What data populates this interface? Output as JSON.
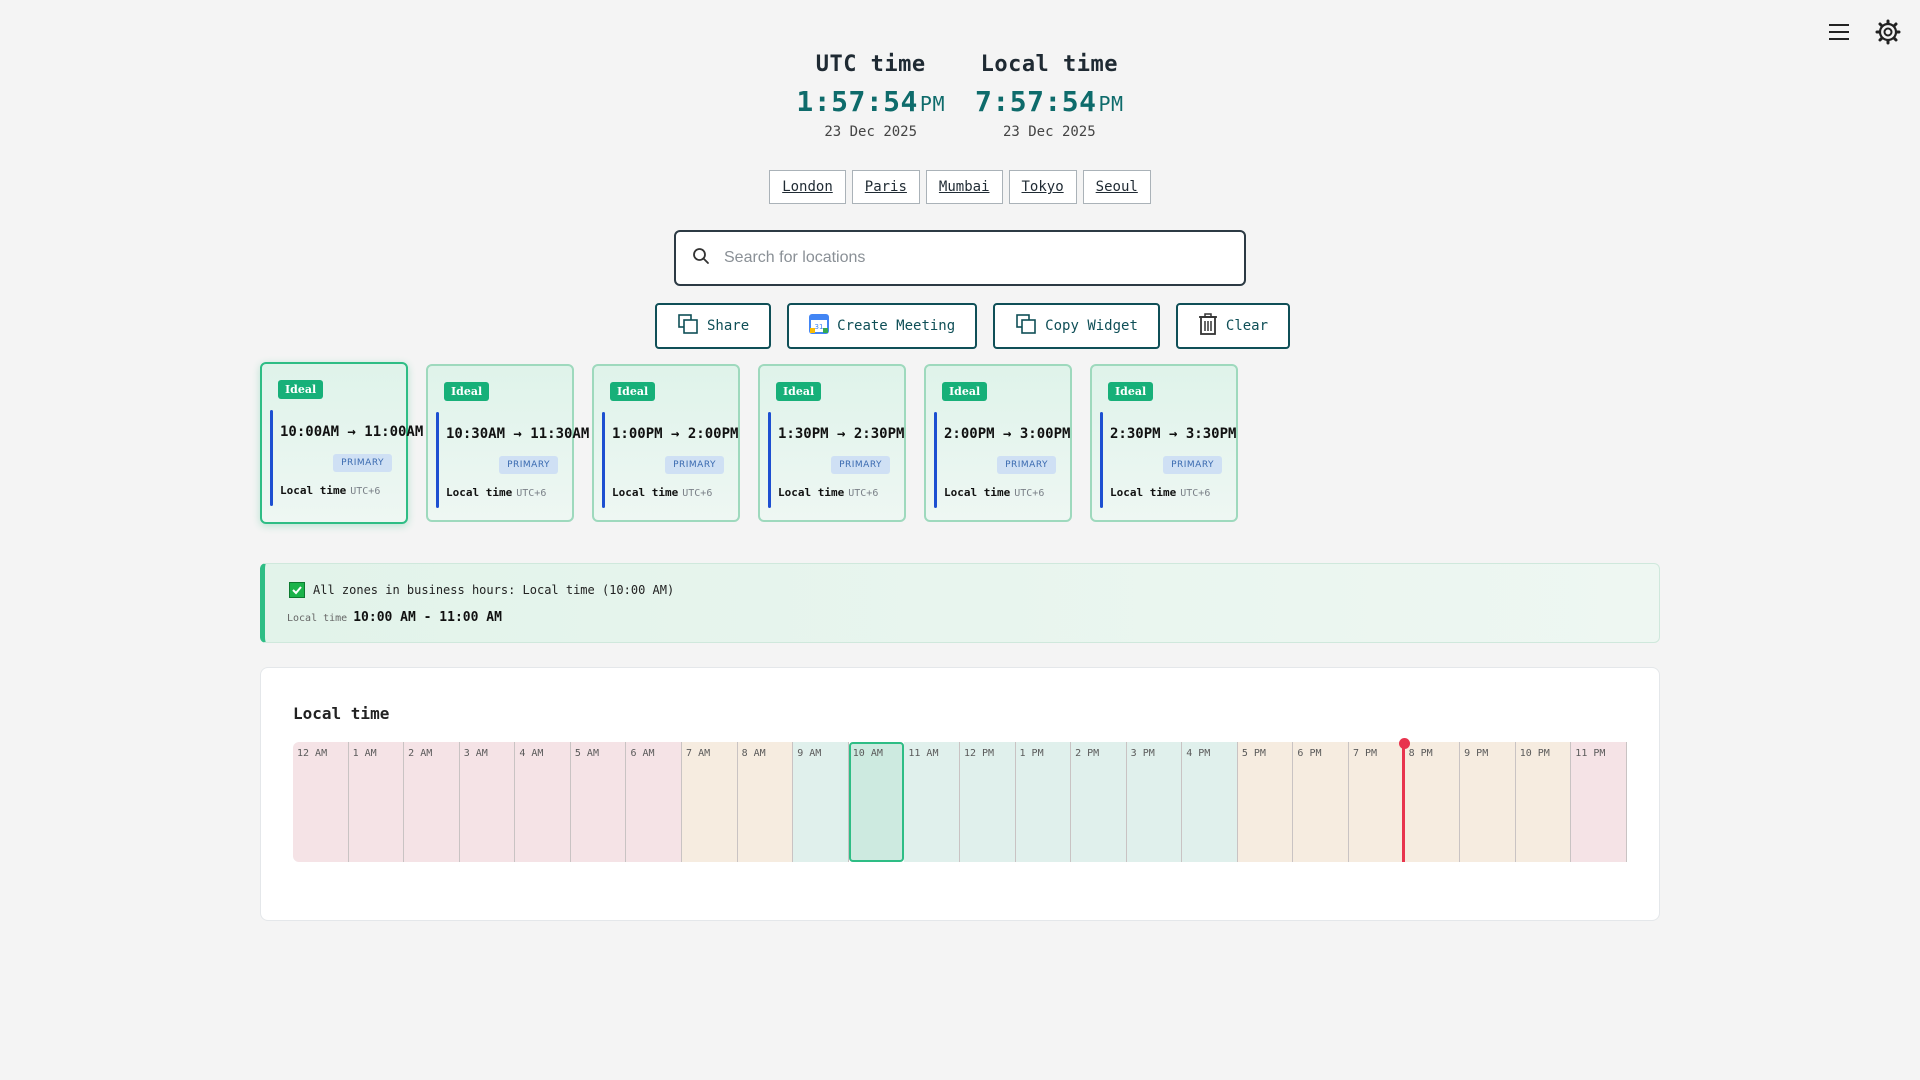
{
  "header": {
    "menu_icon": "hamburger-menu-icon",
    "settings_icon": "gear-icon"
  },
  "clocks": [
    {
      "label": "UTC time",
      "time": "1:57:54",
      "ampm": "PM",
      "date": "23 Dec 2025"
    },
    {
      "label": "Local time",
      "time": "7:57:54",
      "ampm": "PM",
      "date": "23 Dec 2025"
    }
  ],
  "cities": [
    "London",
    "Paris",
    "Mumbai",
    "Tokyo",
    "Seoul"
  ],
  "search": {
    "placeholder": "Search for locations",
    "value": ""
  },
  "actions": {
    "share": "Share",
    "create_meeting": "Create Meeting",
    "copy_widget": "Copy Widget",
    "clear": "Clear"
  },
  "slots": [
    {
      "badge": "Ideal",
      "range": "10:00AM → 11:00AM",
      "tag": "PRIMARY",
      "zone": "Local time",
      "offset": "UTC+6",
      "selected": true
    },
    {
      "badge": "Ideal",
      "range": "10:30AM → 11:30AM",
      "tag": "PRIMARY",
      "zone": "Local time",
      "offset": "UTC+6",
      "selected": false
    },
    {
      "badge": "Ideal",
      "range": "1:00PM → 2:00PM",
      "tag": "PRIMARY",
      "zone": "Local time",
      "offset": "UTC+6",
      "selected": false
    },
    {
      "badge": "Ideal",
      "range": "1:30PM → 2:30PM",
      "tag": "PRIMARY",
      "zone": "Local time",
      "offset": "UTC+6",
      "selected": false
    },
    {
      "badge": "Ideal",
      "range": "2:00PM → 3:00PM",
      "tag": "PRIMARY",
      "zone": "Local time",
      "offset": "UTC+6",
      "selected": false
    },
    {
      "badge": "Ideal",
      "range": "2:30PM → 3:30PM",
      "tag": "PRIMARY",
      "zone": "Local time",
      "offset": "UTC+6",
      "selected": false
    }
  ],
  "banner": {
    "message": "All zones in business hours: Local time (10:00 AM)",
    "zone_label": "Local time",
    "range": "10:00 AM - 11:00 AM"
  },
  "timeline": {
    "title": "Local time",
    "hours": [
      {
        "label": "12 AM",
        "kind": "night"
      },
      {
        "label": "1 AM",
        "kind": "night"
      },
      {
        "label": "2 AM",
        "kind": "night"
      },
      {
        "label": "3 AM",
        "kind": "night"
      },
      {
        "label": "4 AM",
        "kind": "night"
      },
      {
        "label": "5 AM",
        "kind": "night"
      },
      {
        "label": "6 AM",
        "kind": "night"
      },
      {
        "label": "7 AM",
        "kind": "edge"
      },
      {
        "label": "8 AM",
        "kind": "edge"
      },
      {
        "label": "9 AM",
        "kind": "biz"
      },
      {
        "label": "10 AM",
        "kind": "sel"
      },
      {
        "label": "11 AM",
        "kind": "biz"
      },
      {
        "label": "12 PM",
        "kind": "biz"
      },
      {
        "label": "1 PM",
        "kind": "biz"
      },
      {
        "label": "2 PM",
        "kind": "biz"
      },
      {
        "label": "3 PM",
        "kind": "biz"
      },
      {
        "label": "4 PM",
        "kind": "biz"
      },
      {
        "label": "5 PM",
        "kind": "edge"
      },
      {
        "label": "6 PM",
        "kind": "edge"
      },
      {
        "label": "7 PM",
        "kind": "edge"
      },
      {
        "label": "8 PM",
        "kind": "edge"
      },
      {
        "label": "9 PM",
        "kind": "edge"
      },
      {
        "label": "10 PM",
        "kind": "edge"
      },
      {
        "label": "11 PM",
        "kind": "night"
      }
    ],
    "current_hour": 19.97
  }
}
